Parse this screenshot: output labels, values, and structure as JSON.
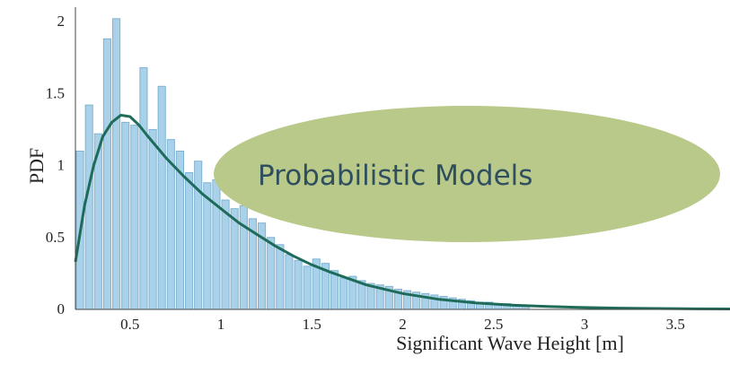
{
  "chart_data": {
    "type": "bar",
    "xlabel": "Significant Wave Height [m]",
    "ylabel": "PDF",
    "xlim": [
      0.2,
      3.8
    ],
    "ylim": [
      0,
      2.1
    ],
    "xticks": [
      "0.5",
      "1",
      "1.5",
      "2",
      "2.5",
      "3",
      "3.5"
    ],
    "yticks": [
      "0",
      "0.5",
      "1",
      "1.5",
      "2"
    ],
    "bar_color": "#a9d2ea",
    "bar_edge": "#7fb3d1",
    "curve_color": "#1e6b5a",
    "bins_x": [
      0.225,
      0.275,
      0.325,
      0.375,
      0.425,
      0.475,
      0.525,
      0.575,
      0.625,
      0.675,
      0.725,
      0.775,
      0.825,
      0.875,
      0.925,
      0.975,
      1.025,
      1.075,
      1.125,
      1.175,
      1.225,
      1.275,
      1.325,
      1.375,
      1.425,
      1.475,
      1.525,
      1.575,
      1.625,
      1.675,
      1.725,
      1.775,
      1.825,
      1.875,
      1.925,
      1.975,
      2.025,
      2.075,
      2.125,
      2.175,
      2.225,
      2.275,
      2.325,
      2.375,
      2.425,
      2.475,
      2.525,
      2.575,
      2.625,
      2.675
    ],
    "values": [
      1.1,
      1.42,
      1.22,
      1.88,
      2.02,
      1.3,
      1.28,
      1.68,
      1.25,
      1.55,
      1.18,
      1.1,
      0.95,
      1.03,
      0.88,
      0.9,
      0.76,
      0.7,
      0.72,
      0.63,
      0.6,
      0.5,
      0.45,
      0.38,
      0.34,
      0.3,
      0.35,
      0.32,
      0.27,
      0.22,
      0.23,
      0.2,
      0.18,
      0.17,
      0.16,
      0.14,
      0.13,
      0.12,
      0.11,
      0.1,
      0.09,
      0.08,
      0.07,
      0.06,
      0.05,
      0.05,
      0.04,
      0.04,
      0.03,
      0.03
    ],
    "curve": {
      "x": [
        0.2,
        0.25,
        0.3,
        0.35,
        0.4,
        0.45,
        0.5,
        0.55,
        0.6,
        0.7,
        0.8,
        0.9,
        1.0,
        1.1,
        1.2,
        1.3,
        1.4,
        1.5,
        1.6,
        1.8,
        2.0,
        2.2,
        2.4,
        2.6,
        2.8,
        3.0,
        3.2,
        3.4,
        3.6,
        3.8
      ],
      "y": [
        0.33,
        0.72,
        1.0,
        1.2,
        1.3,
        1.35,
        1.34,
        1.28,
        1.2,
        1.05,
        0.92,
        0.8,
        0.7,
        0.6,
        0.52,
        0.44,
        0.37,
        0.31,
        0.26,
        0.17,
        0.11,
        0.07,
        0.045,
        0.03,
        0.02,
        0.013,
        0.009,
        0.006,
        0.004,
        0.003
      ]
    }
  },
  "overlay": {
    "label": "Probabilistic Models",
    "fill": "#b9c98a"
  }
}
